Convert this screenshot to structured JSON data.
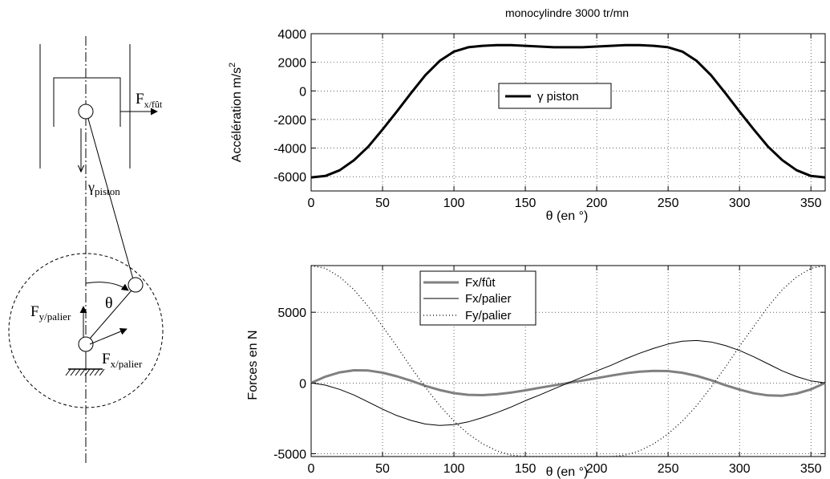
{
  "diagram": {
    "labels": {
      "f_fut_main": "F",
      "f_fut_sub": "x/fût",
      "gamma_main": "γ",
      "gamma_sub": "piston",
      "theta": "θ",
      "fy_main": "F",
      "fy_sub": "y/palier",
      "fx_main": "F",
      "fx_sub": "x/palier"
    }
  },
  "chart_data": [
    {
      "type": "line",
      "title": "monocylindre 3000 tr/mn",
      "xlabel": "θ (en °)",
      "ylabel_prefix": "Accélération m/s",
      "ylabel_sup": "2",
      "xlim": [
        0,
        360
      ],
      "ylim": [
        -7000,
        4000
      ],
      "xticks": [
        0,
        50,
        100,
        150,
        200,
        250,
        300,
        350
      ],
      "yticks": [
        -6000,
        -4000,
        -2000,
        0,
        2000,
        4000
      ],
      "grid": true,
      "legend_position": "center",
      "series": [
        {
          "name": "γ piston",
          "color": "#000000",
          "style": "solid-thick",
          "x": [
            0,
            10,
            20,
            30,
            40,
            50,
            60,
            70,
            80,
            90,
            100,
            110,
            120,
            130,
            140,
            150,
            160,
            170,
            180,
            190,
            200,
            210,
            220,
            230,
            240,
            250,
            260,
            270,
            280,
            290,
            300,
            310,
            320,
            330,
            340,
            350,
            360
          ],
          "values": [
            -6050,
            -5950,
            -5550,
            -4850,
            -3900,
            -2700,
            -1450,
            -150,
            1100,
            2100,
            2750,
            3050,
            3150,
            3200,
            3200,
            3150,
            3100,
            3050,
            3050,
            3050,
            3100,
            3150,
            3200,
            3200,
            3150,
            3050,
            2750,
            2100,
            1100,
            -150,
            -1450,
            -2700,
            -3900,
            -4850,
            -5550,
            -5950,
            -6050
          ]
        }
      ]
    },
    {
      "type": "line",
      "title": "",
      "xlabel": "θ (en °)",
      "ylabel": "Forces en N",
      "xlim": [
        0,
        360
      ],
      "ylim": [
        -5200,
        8300
      ],
      "xticks": [
        0,
        50,
        100,
        150,
        200,
        250,
        300,
        350
      ],
      "yticks": [
        -5000,
        0,
        5000
      ],
      "grid": true,
      "legend_position": "top-left",
      "series": [
        {
          "name": "Fx/fût",
          "color": "#808080",
          "style": "solid-thick",
          "x": [
            0,
            10,
            20,
            30,
            40,
            50,
            60,
            70,
            80,
            90,
            100,
            110,
            120,
            130,
            140,
            150,
            160,
            170,
            180,
            190,
            200,
            210,
            220,
            230,
            240,
            250,
            260,
            270,
            280,
            290,
            300,
            310,
            320,
            330,
            340,
            350,
            360
          ],
          "values": [
            0,
            450,
            750,
            900,
            880,
            730,
            470,
            160,
            -200,
            -500,
            -720,
            -840,
            -860,
            -800,
            -680,
            -520,
            -340,
            -170,
            0,
            170,
            340,
            520,
            680,
            800,
            860,
            840,
            720,
            500,
            200,
            -160,
            -470,
            -730,
            -880,
            -900,
            -750,
            -450,
            0
          ]
        },
        {
          "name": "Fx/palier",
          "color": "#000000",
          "style": "solid-thin",
          "x": [
            0,
            10,
            20,
            30,
            40,
            50,
            60,
            70,
            80,
            90,
            100,
            110,
            120,
            130,
            140,
            150,
            160,
            170,
            180,
            190,
            200,
            210,
            220,
            230,
            240,
            250,
            260,
            270,
            280,
            290,
            300,
            310,
            320,
            330,
            340,
            350,
            360
          ],
          "values": [
            0,
            -150,
            -450,
            -850,
            -1350,
            -1850,
            -2300,
            -2650,
            -2900,
            -3000,
            -2950,
            -2750,
            -2450,
            -2100,
            -1700,
            -1250,
            -850,
            -420,
            0,
            420,
            850,
            1250,
            1700,
            2100,
            2450,
            2750,
            2950,
            3000,
            2900,
            2650,
            2300,
            1850,
            1350,
            850,
            450,
            150,
            0
          ]
        },
        {
          "name": "Fy/palier",
          "color": "#000000",
          "style": "dotted",
          "x": [
            0,
            10,
            20,
            30,
            40,
            50,
            60,
            70,
            80,
            90,
            100,
            110,
            120,
            130,
            140,
            150,
            160,
            170,
            180,
            190,
            200,
            210,
            220,
            230,
            240,
            250,
            260,
            270,
            280,
            290,
            300,
            310,
            320,
            330,
            340,
            350,
            360
          ],
          "values": [
            8300,
            8100,
            7500,
            6600,
            5400,
            4000,
            2600,
            1100,
            -300,
            -1600,
            -2700,
            -3600,
            -4300,
            -4800,
            -5100,
            -5200,
            -5200,
            -5200,
            -5200,
            -5200,
            -5200,
            -5200,
            -5100,
            -4800,
            -4300,
            -3600,
            -2700,
            -1600,
            -300,
            1100,
            2600,
            4000,
            5400,
            6600,
            7500,
            8100,
            8300
          ]
        }
      ]
    }
  ]
}
